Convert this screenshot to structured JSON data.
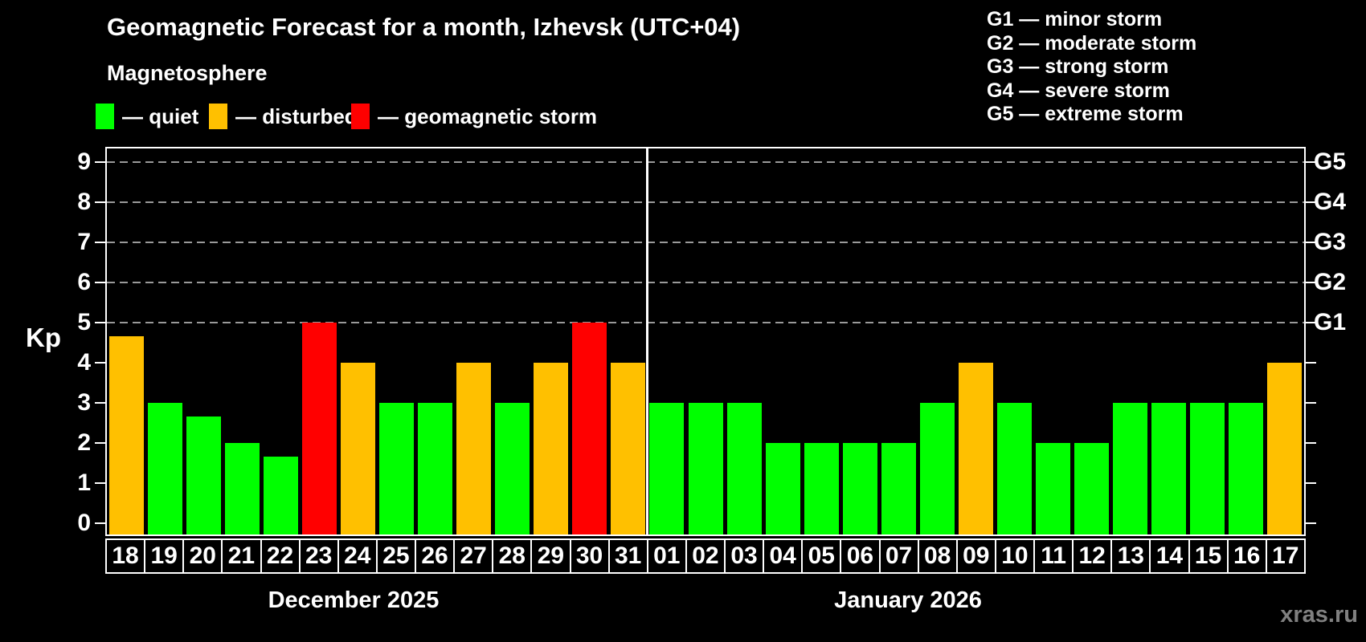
{
  "title": "Geomagnetic Forecast for a month, Izhevsk (UTC+04)",
  "subtitle": "Magnetosphere",
  "legend": {
    "quiet": {
      "label": "— quiet",
      "color": "#00ff00"
    },
    "disturbed": {
      "label": "— disturbed",
      "color": "#ffc000"
    },
    "storm": {
      "label": "— geomagnetic storm",
      "color": "#ff0000"
    }
  },
  "g_legend": [
    "G1 — minor storm",
    "G2 — moderate storm",
    "G3 — strong storm",
    "G4 — severe storm",
    "G5 — extreme storm"
  ],
  "watermark": "xras.ru",
  "chart_data": {
    "type": "bar",
    "ylabel": "Kp",
    "ylim": [
      0,
      9
    ],
    "yticks": [
      0,
      1,
      2,
      3,
      4,
      5,
      6,
      7,
      8,
      9
    ],
    "gridlines_at": [
      5,
      6,
      7,
      8,
      9
    ],
    "right_axis_labels": {
      "5": "G1",
      "6": "G2",
      "7": "G3",
      "8": "G4",
      "9": "G5"
    },
    "color_map": {
      "quiet": "#00ff00",
      "disturbed": "#ffc000",
      "storm": "#ff0000"
    },
    "months": [
      {
        "label": "December 2025",
        "days": [
          "18",
          "19",
          "20",
          "21",
          "22",
          "23",
          "24",
          "25",
          "26",
          "27",
          "28",
          "29",
          "30",
          "31"
        ],
        "values": [
          4.67,
          3,
          2.67,
          2,
          1.67,
          5,
          4,
          3,
          3,
          4,
          3,
          4,
          5,
          4
        ],
        "status": [
          "disturbed",
          "quiet",
          "quiet",
          "quiet",
          "quiet",
          "storm",
          "disturbed",
          "quiet",
          "quiet",
          "disturbed",
          "quiet",
          "disturbed",
          "storm",
          "disturbed"
        ]
      },
      {
        "label": "January 2026",
        "days": [
          "01",
          "02",
          "03",
          "04",
          "05",
          "06",
          "07",
          "08",
          "09",
          "10",
          "11",
          "12",
          "13",
          "14",
          "15",
          "16",
          "17"
        ],
        "values": [
          3,
          3,
          3,
          2,
          2,
          2,
          2,
          3,
          4,
          3,
          2,
          2,
          3,
          3,
          3,
          3,
          4
        ],
        "status": [
          "quiet",
          "quiet",
          "quiet",
          "quiet",
          "quiet",
          "quiet",
          "quiet",
          "quiet",
          "disturbed",
          "quiet",
          "quiet",
          "quiet",
          "quiet",
          "quiet",
          "quiet",
          "quiet",
          "disturbed"
        ]
      }
    ]
  }
}
